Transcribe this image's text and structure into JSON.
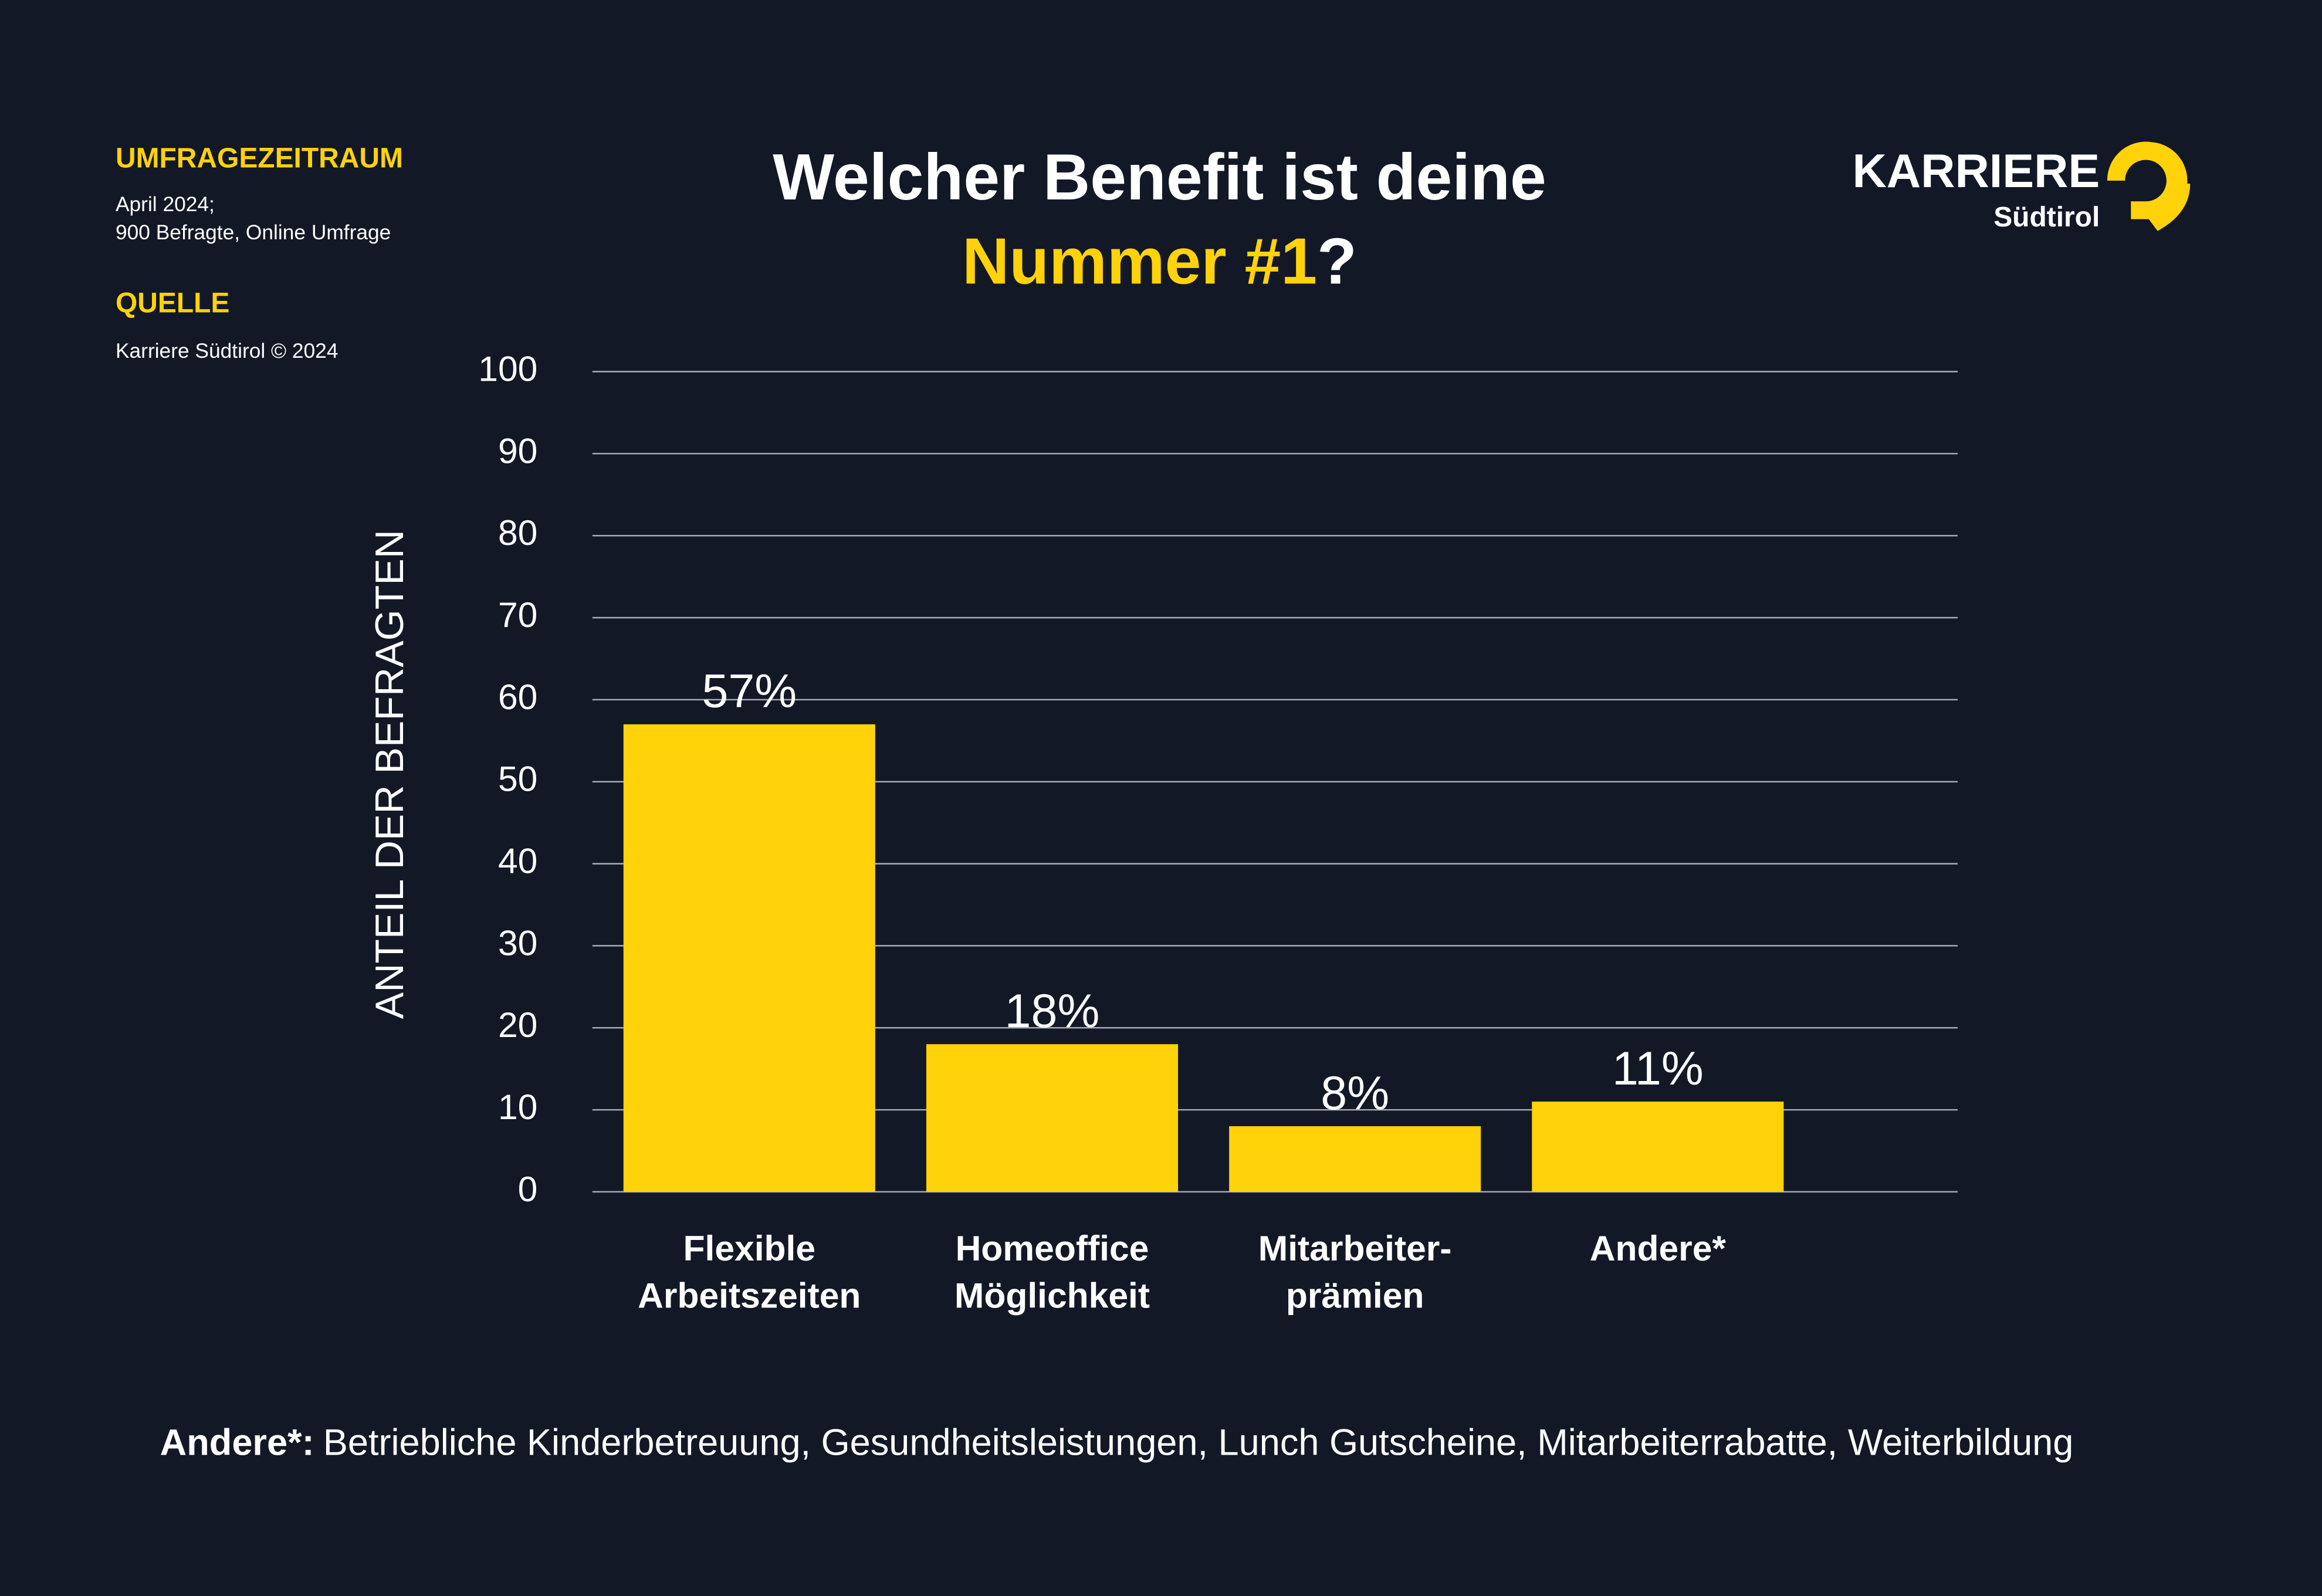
{
  "header": {
    "period_heading": "UMFRAGEZEITRAUM",
    "period_lines": [
      "April 2024;",
      "900 Befragte, Online Umfrage"
    ],
    "source_heading": "QUELLE",
    "source": "Karriere Südtirol © 2024",
    "logo_word": "KARRIERE",
    "logo_sub": "Südtirol"
  },
  "chart_data": {
    "type": "bar",
    "title": [
      "Welcher Benefit ist deine",
      "Nummer #1",
      "?"
    ],
    "y_label": "ANTEIL DER BEFRAGTEN",
    "categories": [
      [
        "Flexible",
        "Arbeitszeiten"
      ],
      [
        "Homeoffice",
        "Möglichkeit"
      ],
      [
        "Mitarbeiter-",
        "prämien"
      ],
      [
        "Andere*"
      ]
    ],
    "values": [
      57,
      18,
      8,
      11
    ],
    "value_labels": [
      "57%",
      "18%",
      "8%",
      "11%"
    ],
    "color": "#ffd20a",
    "ylim": [
      0,
      100
    ],
    "yticks": [
      0,
      10,
      20,
      30,
      40,
      50,
      60,
      70,
      80,
      90,
      100
    ],
    "grid": true
  },
  "footnote": {
    "label": "Andere*:",
    "text": "Betriebliche Kinderbetreuung, Gesundheitsleistungen, Lunch Gutscheine, Mitarbeiterrabatte, Weiterbildung"
  }
}
